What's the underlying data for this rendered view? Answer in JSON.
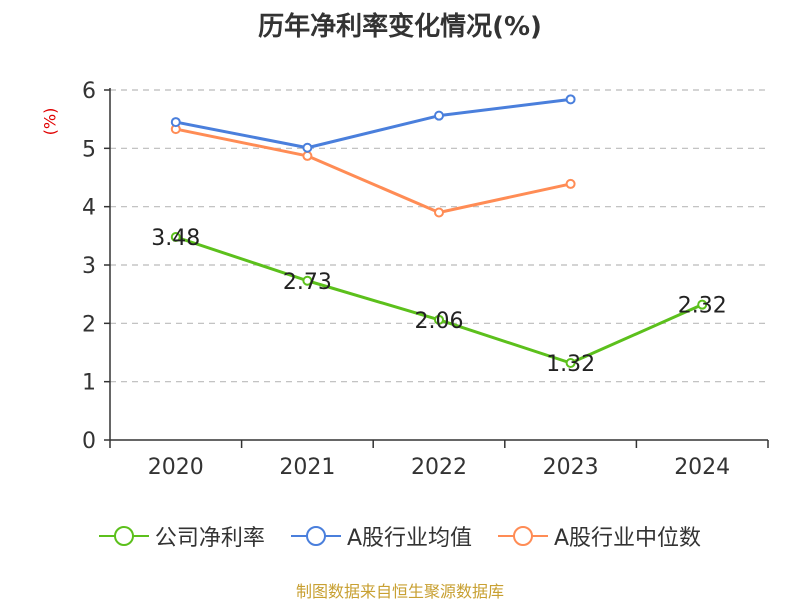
{
  "title": "历年净利率变化情况(%)",
  "source": "制图数据来自恒生聚源数据库",
  "colors": {
    "company": "#5cc01c",
    "industry_avg": "#4a7fdc",
    "industry_median": "#ff8c55",
    "axis": "#333333",
    "grid": "#bbbbbb",
    "unit": "#e00000",
    "source": "#c8a032"
  },
  "chart_data": {
    "type": "line",
    "title": "历年净利率变化情况(%)",
    "ylabel": "(%)",
    "xlabel": "",
    "categories": [
      "2020",
      "2021",
      "2022",
      "2023",
      "2024"
    ],
    "y_ticks": [
      0,
      1,
      2,
      3,
      4,
      5,
      6
    ],
    "ylim": [
      0,
      6
    ],
    "grid": true,
    "legend_position": "bottom",
    "series": [
      {
        "name": "公司净利率",
        "values": [
          3.48,
          2.73,
          2.06,
          1.32,
          2.32
        ],
        "labels": [
          "3.48",
          "2.73",
          "2.06",
          "1.32",
          "2.32"
        ],
        "color": "#5cc01c"
      },
      {
        "name": "A股行业均值",
        "values": [
          5.45,
          5.01,
          5.56,
          5.84,
          null
        ],
        "color": "#4a7fdc"
      },
      {
        "name": "A股行业中位数",
        "values": [
          5.33,
          4.87,
          3.9,
          4.39,
          null
        ],
        "color": "#ff8c55"
      }
    ]
  }
}
